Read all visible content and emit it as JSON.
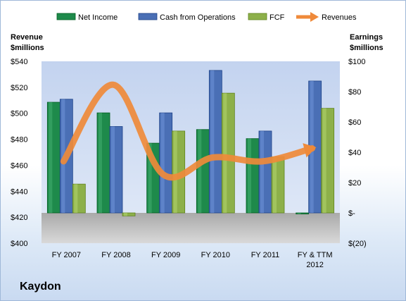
{
  "chart_data": {
    "type": "bar",
    "company": "Kaydon",
    "categories": [
      "FY 2007",
      "FY 2008",
      "FY 2009",
      "FY 2010",
      "FY 2011",
      "FY & TTM 2012"
    ],
    "series": [
      {
        "name": "Net Income",
        "axis": "right",
        "type": "bar",
        "color": "#1e8a4b",
        "values": [
          73,
          66,
          46,
          55,
          49,
          0
        ]
      },
      {
        "name": "Cash from Operations",
        "axis": "right",
        "type": "bar",
        "color": "#4a6fb5",
        "values": [
          75,
          57,
          66,
          94,
          54,
          87
        ]
      },
      {
        "name": "FCF",
        "axis": "right",
        "type": "bar",
        "color": "#8db04a",
        "values": [
          19,
          -2,
          54,
          79,
          37,
          69
        ]
      },
      {
        "name": "Revenues",
        "axis": "left",
        "type": "line",
        "color": "#ef8a3a",
        "values": [
          463,
          522,
          453,
          466,
          463,
          473
        ]
      }
    ],
    "left_axis": {
      "label_line1": "Revenue",
      "label_line2": "$millions",
      "min": 400,
      "max": 540,
      "step": 20,
      "ticks": [
        "$400",
        "$420",
        "$440",
        "$460",
        "$480",
        "$500",
        "$520",
        "$540"
      ]
    },
    "right_axis": {
      "label_line1": "Earnings",
      "label_line2": "$millions",
      "min": -20,
      "max": 100,
      "step": 20,
      "ticks": [
        "$(20)",
        "$-",
        "$20",
        "$40",
        "$60",
        "$80",
        "$100"
      ]
    },
    "grid": false,
    "legend_position": "top"
  }
}
